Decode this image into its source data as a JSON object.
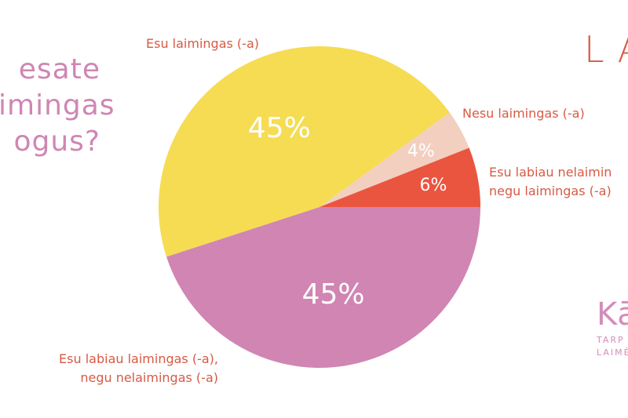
{
  "question": {
    "lines": [
      "esate",
      "imingas",
      "ogus?"
    ]
  },
  "brand_top": "LA",
  "brand_bottom": {
    "mark": "Kā",
    "line1": "TARP",
    "line2": "LAIMĖ"
  },
  "colors": {
    "yellow": "#f5dc52",
    "peach": "#f3cfc0",
    "red": "#ea5540",
    "pink": "#d085b3",
    "label": "#d75a45",
    "question": "#cf86b4"
  },
  "chart_data": {
    "type": "pie",
    "title": "",
    "slices": [
      {
        "label": "Esu laimingas (-a)",
        "value": 45,
        "display": "45%",
        "color": "#f5dc52"
      },
      {
        "label": "Nesu laimingas (-a)",
        "value": 4,
        "display": "4%",
        "color": "#f3cfc0"
      },
      {
        "label": "Esu labiau nelaimin… negu laimingas (-a)",
        "value": 6,
        "display": "6%",
        "color": "#ea5540"
      },
      {
        "label": "Esu labiau laimingas (-a), negu nelaimingas (-a)",
        "value": 45,
        "display": "45%",
        "color": "#d085b3"
      }
    ]
  },
  "labels": {
    "slice0": "Esu laimingas (-a)",
    "slice1": "Nesu laimingas (-a)",
    "slice2_line1": "Esu labiau nelaimin",
    "slice2_line2": "negu laimingas (-a)",
    "slice3_line1": "Esu labiau laimingas (-a),",
    "slice3_line2": "negu nelaimingas (-a)"
  }
}
